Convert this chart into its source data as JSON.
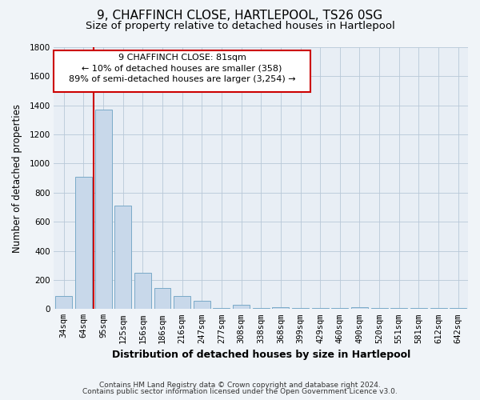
{
  "title": "9, CHAFFINCH CLOSE, HARTLEPOOL, TS26 0SG",
  "subtitle": "Size of property relative to detached houses in Hartlepool",
  "xlabel": "Distribution of detached houses by size in Hartlepool",
  "ylabel": "Number of detached properties",
  "categories": [
    "34sqm",
    "64sqm",
    "95sqm",
    "125sqm",
    "156sqm",
    "186sqm",
    "216sqm",
    "247sqm",
    "277sqm",
    "308sqm",
    "338sqm",
    "368sqm",
    "399sqm",
    "429sqm",
    "460sqm",
    "490sqm",
    "520sqm",
    "551sqm",
    "581sqm",
    "612sqm",
    "642sqm"
  ],
  "values": [
    90,
    910,
    1370,
    710,
    250,
    145,
    90,
    55,
    5,
    30,
    5,
    15,
    5,
    5,
    5,
    15,
    5,
    5,
    5,
    5,
    5
  ],
  "bar_color": "#c8d8ea",
  "bar_edge_color": "#7aaac8",
  "vline_color": "#cc0000",
  "vline_pos": 1.5,
  "annotation_line1": "9 CHAFFINCH CLOSE: 81sqm",
  "annotation_line2": "← 10% of detached houses are smaller (358)",
  "annotation_line3": "89% of semi-detached houses are larger (3,254) →",
  "annotation_box_color": "#ffffff",
  "annotation_box_edge_color": "#cc0000",
  "ylim": [
    0,
    1800
  ],
  "yticks": [
    0,
    200,
    400,
    600,
    800,
    1000,
    1200,
    1400,
    1600,
    1800
  ],
  "footer_line1": "Contains HM Land Registry data © Crown copyright and database right 2024.",
  "footer_line2": "Contains public sector information licensed under the Open Government Licence v3.0.",
  "bg_color": "#f0f4f8",
  "plot_bg_color": "#e8eef5",
  "title_fontsize": 11,
  "subtitle_fontsize": 9.5,
  "xlabel_fontsize": 9,
  "ylabel_fontsize": 8.5,
  "tick_fontsize": 7.5,
  "annotation_fontsize": 8,
  "footer_fontsize": 6.5
}
